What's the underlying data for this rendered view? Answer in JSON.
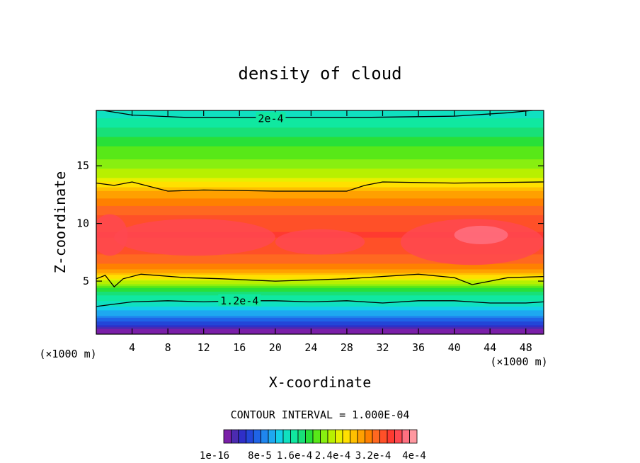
{
  "chart_data": {
    "type": "contour",
    "title": "density of cloud",
    "xlabel": "X-coordinate",
    "ylabel": "Z-coordinate",
    "x_unit_left": "(×1000 m)",
    "x_unit_right": "(×1000 m)",
    "xlim": [
      0,
      50
    ],
    "ylim": [
      0.4,
      19.8
    ],
    "x_ticks": [
      4,
      8,
      12,
      16,
      20,
      24,
      28,
      32,
      36,
      40,
      44,
      48
    ],
    "y_ticks": [
      5,
      10,
      15
    ],
    "grid": false,
    "contour_labels": [
      {
        "text": "2e-4",
        "x": 19.5,
        "z": 19.1
      },
      {
        "text": "1.2e-4",
        "x": 16.0,
        "z": 3.3
      }
    ],
    "contour_interval_text": "CONTOUR INTERVAL = 1.000E-04",
    "colorbar": {
      "labels": [
        "1e-16",
        "8e-5",
        "1.6e-4",
        "2.4e-4",
        "3.2e-4",
        "4e-4"
      ],
      "colors": [
        "#7a1fa8",
        "#4b2bb0",
        "#2f2fc8",
        "#2346d8",
        "#1f64e6",
        "#1f86ee",
        "#1ea8f0",
        "#14cfe8",
        "#10e0c0",
        "#10e8a0",
        "#18e078",
        "#28e038",
        "#58e818",
        "#88ef10",
        "#b8f000",
        "#e8f000",
        "#ffe000",
        "#ffc000",
        "#ffa000",
        "#ff8000",
        "#ff6820",
        "#ff5028",
        "#ff3a30",
        "#ff4850",
        "#ff7080",
        "#ff98a0"
      ],
      "range": [
        0,
        0.0004
      ]
    },
    "profile": {
      "z": [
        0.6,
        1.0,
        1.5,
        2.0,
        2.5,
        3.0,
        3.5,
        4.0,
        4.5,
        5.0,
        6.0,
        7.0,
        8.0,
        9.0,
        10.0,
        11.0,
        12.0,
        13.0,
        13.5,
        14.0,
        15.0,
        16.0,
        17.0,
        18.0,
        19.0,
        19.8
      ],
      "density": [
        0.0,
        3e-05,
        6e-05,
        9e-05,
        0.00011,
        0.00013,
        0.000145,
        0.00016,
        0.00019,
        0.00023,
        0.00029,
        0.00032,
        0.00033,
        0.00034,
        0.000335,
        0.00032,
        0.0003,
        0.00027,
        0.00025,
        0.00023,
        0.00021,
        0.000195,
        0.00018,
        0.00016,
        0.00014,
        0.00013
      ]
    },
    "contour_lines": [
      {
        "level": 0.0002,
        "x": [
          0,
          4,
          10,
          20,
          30,
          40,
          46,
          50
        ],
        "z": [
          19.9,
          19.4,
          19.2,
          19.2,
          19.2,
          19.3,
          19.6,
          19.9
        ]
      },
      {
        "level": 0.00025,
        "x": [
          0,
          2,
          4,
          8,
          12,
          20,
          28,
          30,
          32,
          40,
          50
        ],
        "z": [
          13.5,
          13.3,
          13.6,
          12.8,
          12.9,
          12.8,
          12.8,
          13.3,
          13.6,
          13.5,
          13.6
        ]
      },
      {
        "level": 0.00025,
        "x": [
          0,
          1,
          2,
          3,
          5,
          10,
          14,
          20,
          28,
          36,
          40,
          42,
          44,
          46,
          50
        ],
        "z": [
          5.2,
          5.5,
          4.5,
          5.2,
          5.6,
          5.3,
          5.2,
          5.0,
          5.2,
          5.6,
          5.3,
          4.7,
          5.0,
          5.3,
          5.4
        ]
      },
      {
        "level": 0.00012,
        "x": [
          0,
          4,
          8,
          12,
          16,
          20,
          24,
          28,
          32,
          36,
          40,
          44,
          48,
          50
        ],
        "z": [
          2.8,
          3.2,
          3.3,
          3.2,
          3.3,
          3.3,
          3.2,
          3.3,
          3.1,
          3.3,
          3.3,
          3.1,
          3.1,
          3.2
        ]
      }
    ]
  }
}
